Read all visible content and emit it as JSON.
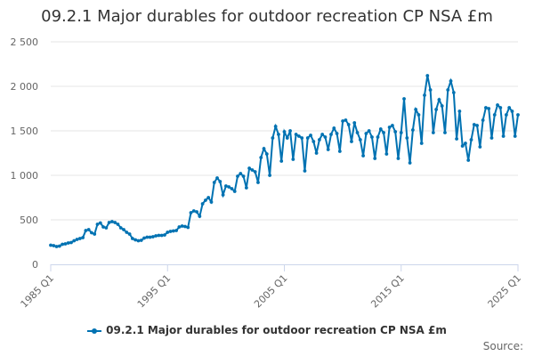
{
  "title": "09.2.1 Major durables for outdoor recreation CP NSA £m",
  "source_label": "Source:",
  "colors": {
    "series": "#0072b2",
    "grid": "#e6e6e6",
    "axis": "#ccd6eb"
  },
  "chart_data": {
    "type": "line",
    "title": "09.2.1 Major durables for outdoor recreation CP NSA £m",
    "xlabel": "",
    "ylabel": "",
    "ylim": [
      0,
      2500
    ],
    "yticks": [
      0,
      500,
      1000,
      1500,
      2000,
      2500
    ],
    "ytick_labels": [
      "0",
      "500",
      "1 000",
      "1 500",
      "2 000",
      "2 500"
    ],
    "x_start": "1985 Q1",
    "x_end": "2025 Q1",
    "xtick_labels": [
      "1985 Q1",
      "1995 Q1",
      "2005 Q1",
      "2015 Q1",
      "2025 Q1"
    ],
    "grid": true,
    "legend_position": "bottom-center",
    "series": [
      {
        "name": "09.2.1 Major durables for outdoor recreation CP NSA £m",
        "values": [
          215,
          210,
          200,
          205,
          225,
          230,
          240,
          245,
          265,
          280,
          290,
          300,
          380,
          390,
          355,
          340,
          450,
          465,
          420,
          410,
          470,
          480,
          470,
          450,
          410,
          390,
          360,
          340,
          290,
          275,
          265,
          270,
          295,
          305,
          305,
          310,
          320,
          325,
          325,
          330,
          360,
          370,
          375,
          380,
          420,
          430,
          425,
          415,
          580,
          600,
          590,
          540,
          680,
          720,
          750,
          700,
          920,
          970,
          930,
          780,
          880,
          870,
          850,
          820,
          990,
          1020,
          990,
          860,
          1080,
          1060,
          1040,
          920,
          1200,
          1300,
          1240,
          1000,
          1420,
          1550,
          1460,
          1160,
          1490,
          1420,
          1500,
          1180,
          1460,
          1440,
          1420,
          1050,
          1420,
          1450,
          1380,
          1250,
          1400,
          1460,
          1430,
          1290,
          1460,
          1530,
          1470,
          1270,
          1610,
          1620,
          1570,
          1380,
          1590,
          1480,
          1400,
          1220,
          1470,
          1500,
          1430,
          1190,
          1430,
          1520,
          1480,
          1240,
          1540,
          1560,
          1490,
          1190,
          1480,
          1860,
          1420,
          1140,
          1510,
          1740,
          1680,
          1360,
          1900,
          2120,
          1960,
          1480,
          1740,
          1850,
          1780,
          1480,
          1960,
          2060,
          1930,
          1410,
          1720,
          1330,
          1360,
          1170,
          1400,
          1570,
          1560,
          1320,
          1620,
          1760,
          1750,
          1420,
          1680,
          1790,
          1760,
          1440,
          1680,
          1760,
          1720,
          1440,
          1680
        ]
      }
    ]
  }
}
